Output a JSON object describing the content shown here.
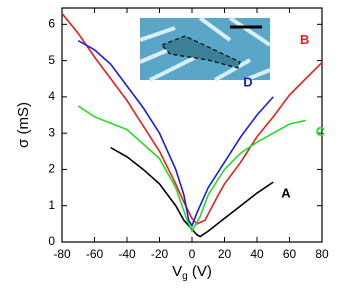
{
  "chart_data": {
    "type": "line",
    "x_label": [
      "V",
      "g",
      " (V)"
    ],
    "y_label": "σ (mS)",
    "xlim": [
      -80,
      80
    ],
    "xticks": [
      -80,
      -60,
      -40,
      -20,
      0,
      20,
      40,
      60,
      80
    ],
    "ylim": [
      0,
      6.45
    ],
    "yticks": [
      0,
      1,
      2,
      3,
      4,
      5,
      6
    ],
    "series": [
      {
        "name": "A",
        "color": "#000000",
        "x": [
          -50,
          -40,
          -30,
          -20,
          -10,
          -5,
          0,
          3,
          5,
          10,
          20,
          30,
          40,
          50
        ],
        "values": [
          2.6,
          2.35,
          2.0,
          1.6,
          1.0,
          0.6,
          0.35,
          0.2,
          0.15,
          0.3,
          0.65,
          1.0,
          1.35,
          1.65
        ]
      },
      {
        "name": "B",
        "color": "#ee1c1c",
        "x": [
          -80,
          -70,
          -60,
          -50,
          -40,
          -30,
          -20,
          -10,
          -5,
          0,
          3,
          8,
          15,
          20,
          30,
          40,
          50,
          60,
          70,
          80
        ],
        "values": [
          6.3,
          5.75,
          5.1,
          4.5,
          3.9,
          3.2,
          2.5,
          1.6,
          1.1,
          0.65,
          0.5,
          0.6,
          1.2,
          1.6,
          2.2,
          2.9,
          3.45,
          4.05,
          4.5,
          4.95
        ]
      },
      {
        "name": "C",
        "color": "#22dd22",
        "x": [
          -70,
          -60,
          -40,
          -20,
          -10,
          -3,
          0,
          5,
          10,
          20,
          30,
          40,
          50,
          60,
          70
        ],
        "values": [
          3.75,
          3.45,
          3.1,
          2.3,
          1.5,
          0.6,
          0.3,
          0.7,
          1.3,
          2.0,
          2.45,
          2.75,
          3.0,
          3.25,
          3.35
        ]
      },
      {
        "name": "D",
        "color": "#1c1cdd",
        "x": [
          -70,
          -60,
          -50,
          -40,
          -30,
          -20,
          -10,
          -5,
          -2,
          0,
          3,
          10,
          20,
          30,
          40,
          50
        ],
        "values": [
          5.55,
          5.3,
          4.9,
          4.3,
          3.7,
          3.0,
          2.0,
          1.3,
          0.6,
          0.45,
          0.8,
          1.5,
          2.2,
          2.9,
          3.5,
          4.0
        ]
      }
    ]
  }
}
